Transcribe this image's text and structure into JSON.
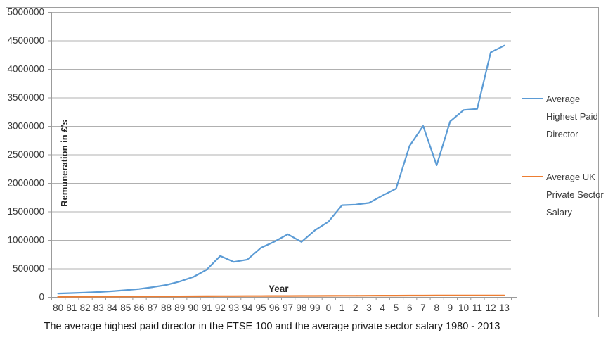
{
  "caption": "The average highest paid director in the FTSE 100 and the average private sector salary 1980 - 2013",
  "axes": {
    "y_title": "Remuneration in £'s",
    "x_title": "Year"
  },
  "legend": {
    "items": [
      {
        "label": "Average Highest Paid Director",
        "color": "#5B9BD5"
      },
      {
        "label": "Average UK Private Sector Salary",
        "color": "#ED7D31"
      }
    ]
  },
  "colors": {
    "series_blue": "#5B9BD5",
    "series_orange": "#ED7D31",
    "gridline": "#b0b0b0",
    "axis_line": "#9b9b9b",
    "chart_border": "#9e9e9e",
    "tick_text": "#3a3a3a"
  },
  "chart_data": {
    "type": "line",
    "title": "The average highest paid director in the FTSE 100 and the average private sector salary 1980 - 2013",
    "xlabel": "Year",
    "ylabel": "Remuneration in £'s",
    "ylim": [
      0,
      5000000
    ],
    "ytick_step": 500000,
    "y_tick_labels": [
      "0",
      "500000",
      "1000000",
      "1500000",
      "2000000",
      "2500000",
      "3000000",
      "3500000",
      "4000000",
      "4500000",
      "5000000"
    ],
    "grid": "horizontal",
    "legend_position": "right",
    "categories": [
      "80",
      "81",
      "82",
      "83",
      "84",
      "85",
      "86",
      "87",
      "88",
      "89",
      "90",
      "91",
      "92",
      "93",
      "94",
      "95",
      "96",
      "97",
      "98",
      "99",
      "0",
      "1",
      "2",
      "3",
      "4",
      "5",
      "6",
      "7",
      "8",
      "9",
      "10",
      "11",
      "12",
      "13"
    ],
    "series": [
      {
        "name": "Average Highest Paid Director",
        "color": "#5B9BD5",
        "values": [
          60000,
          68000,
          77000,
          87000,
          100000,
          118000,
          140000,
          172000,
          210000,
          270000,
          350000,
          480000,
          720000,
          615000,
          655000,
          860000,
          970000,
          1100000,
          965000,
          1170000,
          1320000,
          1610000,
          1620000,
          1650000,
          1780000,
          1900000,
          2650000,
          3000000,
          2310000,
          3080000,
          3280000,
          3300000,
          4290000,
          4410000
        ]
      },
      {
        "name": "Average UK Private Sector Salary",
        "color": "#ED7D31",
        "values": [
          5500,
          6000,
          6500,
          7000,
          7600,
          8200,
          8900,
          9700,
          10600,
          11600,
          12500,
          13400,
          14200,
          14900,
          15500,
          16100,
          16800,
          17500,
          18200,
          18900,
          19800,
          20700,
          21500,
          22300,
          23000,
          23700,
          24400,
          25100,
          25600,
          25900,
          26200,
          26500,
          26800,
          27100
        ]
      }
    ]
  }
}
